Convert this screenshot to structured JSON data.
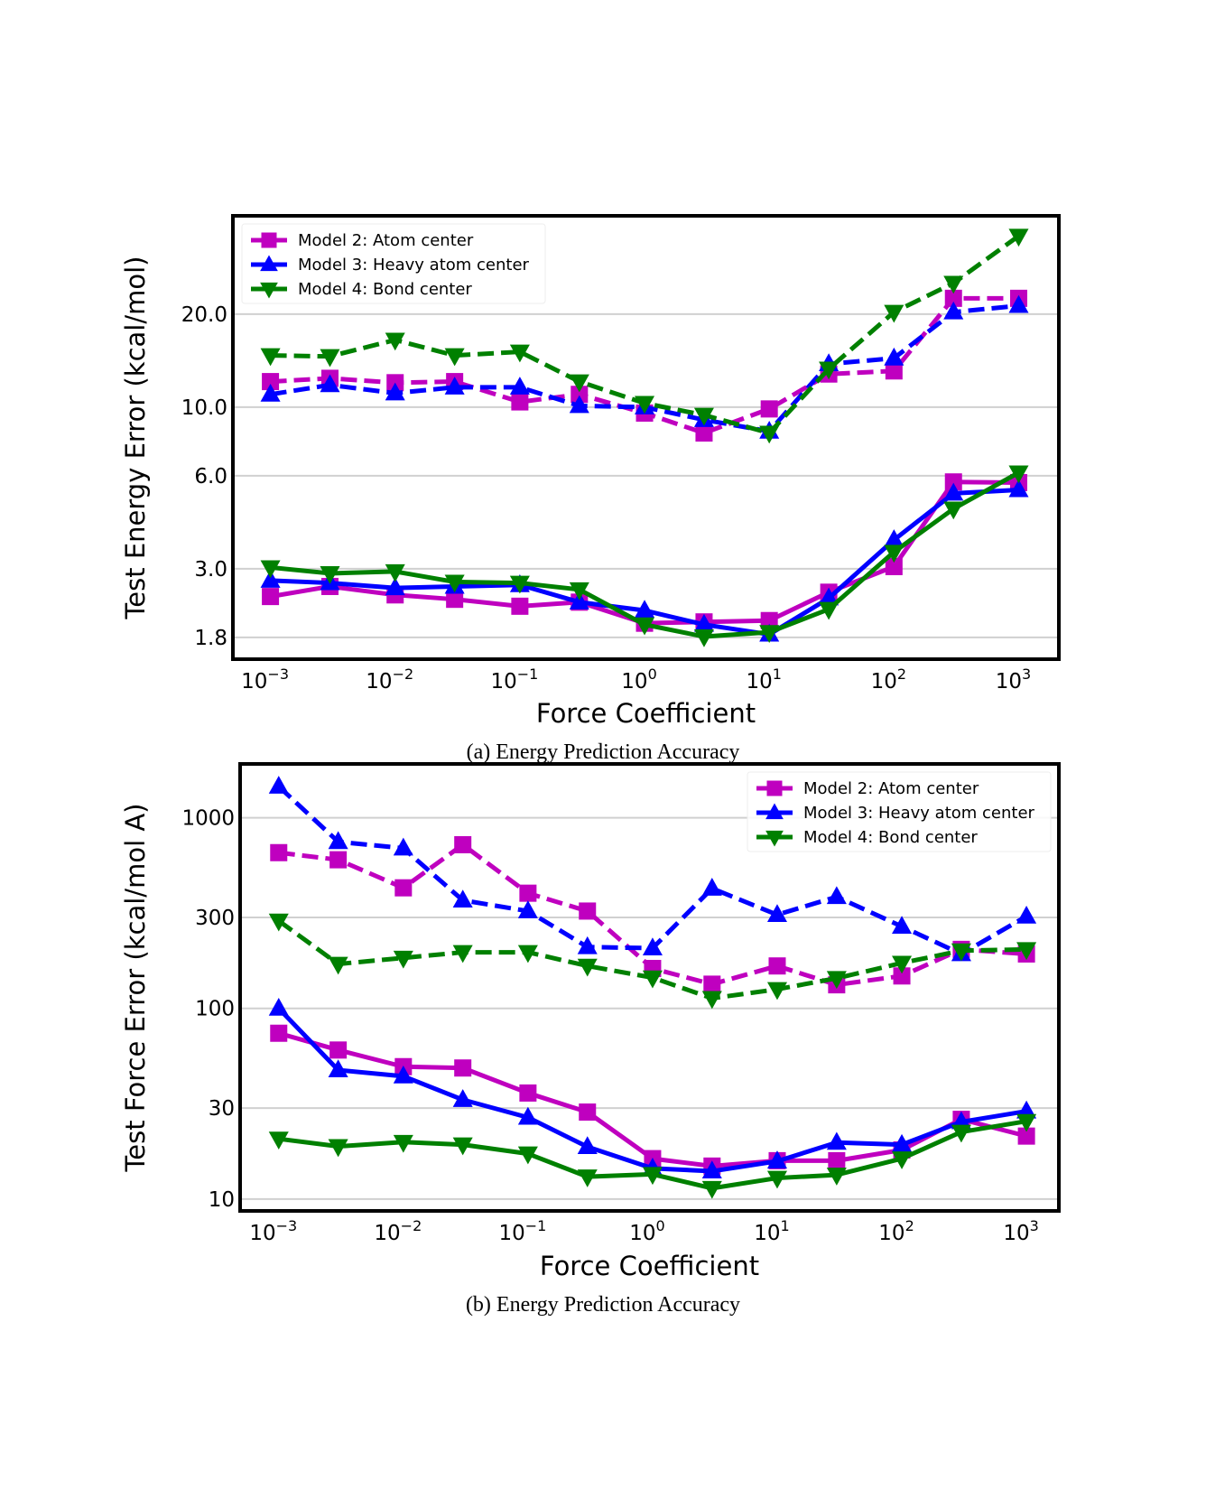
{
  "x_values": [
    0.001,
    0.003,
    0.01,
    0.03,
    0.1,
    0.3,
    1,
    3,
    10,
    30,
    100,
    300,
    1000
  ],
  "colors": {
    "Model 2": "#bf00bf",
    "Model 3": "#0000ff",
    "Model 4": "#008000"
  },
  "markers": {
    "Model 2": "square",
    "Model 3": "triangle-up",
    "Model 4": "triangle-down"
  },
  "chart_data": [
    {
      "type": "line",
      "caption": "(a) Energy Prediction Accuracy",
      "xlabel": "Force Coefficient",
      "ylabel": "Test Energy Error (kcal/mol)",
      "xscale": "log",
      "yscale": "log",
      "xlim": [
        0.0005,
        2100
      ],
      "ylim": [
        1.53,
        41.6
      ],
      "xticks": [
        {
          "exp": "-3",
          "value": 0.001
        },
        {
          "exp": "-2",
          "value": 0.01
        },
        {
          "exp": "-1",
          "value": 0.1
        },
        {
          "exp": "0",
          "value": 1
        },
        {
          "exp": "1",
          "value": 10
        },
        {
          "exp": "2",
          "value": 100
        },
        {
          "exp": "3",
          "value": 1000
        }
      ],
      "yticks": [
        {
          "label": "1.8",
          "value": 1.8
        },
        {
          "label": "3.0",
          "value": 3.0
        },
        {
          "label": "6.0",
          "value": 6.0
        },
        {
          "label": "10.0",
          "value": 10.0
        },
        {
          "label": "20.0",
          "value": 20.0
        }
      ],
      "grid": "horizontal",
      "legend_position": "top-left",
      "legend": [
        "Model 2: Atom center",
        "Model 3: Heavy atom center",
        "Model 4: Bond center"
      ],
      "series": [
        {
          "model": "Model 2",
          "linestyle": "dashed",
          "values": [
            12.1,
            12.4,
            12.0,
            12.1,
            10.4,
            11.0,
            9.57,
            8.25,
            9.87,
            12.8,
            13.1,
            22.5,
            22.5
          ]
        },
        {
          "model": "Model 3",
          "linestyle": "dashed",
          "values": [
            11.0,
            11.8,
            11.1,
            11.6,
            11.6,
            10.1,
            10.0,
            9.1,
            8.35,
            13.8,
            14.4,
            20.3,
            21.3
          ]
        },
        {
          "model": "Model 4",
          "linestyle": "dashed",
          "values": [
            14.7,
            14.6,
            16.5,
            14.7,
            15.1,
            12.1,
            10.3,
            9.43,
            8.25,
            13.3,
            20.3,
            25.2,
            35.8
          ]
        },
        {
          "model": "Model 2",
          "linestyle": "solid",
          "values": [
            2.44,
            2.63,
            2.47,
            2.39,
            2.27,
            2.34,
            2.0,
            2.02,
            2.04,
            2.52,
            3.05,
            5.73,
            5.7
          ]
        },
        {
          "model": "Model 3",
          "linestyle": "solid",
          "values": [
            2.75,
            2.7,
            2.6,
            2.63,
            2.66,
            2.34,
            2.2,
            1.98,
            1.84,
            2.41,
            3.72,
            5.26,
            5.4
          ]
        },
        {
          "model": "Model 4",
          "linestyle": "solid",
          "values": [
            3.03,
            2.9,
            2.94,
            2.72,
            2.7,
            2.57,
            1.98,
            1.81,
            1.87,
            2.22,
            3.4,
            4.69,
            6.14
          ]
        }
      ]
    },
    {
      "type": "line",
      "caption": "(b) Energy Prediction Accuracy",
      "xlabel": "Force Coefficient",
      "ylabel": "Test Force Error (kcal/mol A)",
      "xscale": "log",
      "yscale": "log",
      "xlim": [
        0.00049,
        1820
      ],
      "ylim": [
        8.67,
        1915
      ],
      "xticks": [
        {
          "exp": "-3",
          "value": 0.001
        },
        {
          "exp": "-2",
          "value": 0.01
        },
        {
          "exp": "-1",
          "value": 0.1
        },
        {
          "exp": "0",
          "value": 1
        },
        {
          "exp": "1",
          "value": 10
        },
        {
          "exp": "2",
          "value": 100
        },
        {
          "exp": "3",
          "value": 1000
        }
      ],
      "yticks": [
        {
          "label": "10",
          "value": 10
        },
        {
          "label": "30",
          "value": 30
        },
        {
          "label": "100",
          "value": 100
        },
        {
          "label": "300",
          "value": 300
        },
        {
          "label": "1000",
          "value": 1000
        }
      ],
      "grid": "horizontal",
      "legend_position": "top-right",
      "legend": [
        "Model 2: Atom center",
        "Model 3: Heavy atom center",
        "Model 4: Bond center"
      ],
      "series": [
        {
          "model": "Model 2",
          "linestyle": "dashed",
          "values": [
            656,
            602,
            429,
            722,
            402,
            324,
            162,
            134,
            167,
            133,
            148,
            204,
            193
          ]
        },
        {
          "model": "Model 3",
          "linestyle": "dashed",
          "values": [
            1459,
            748,
            692,
            369,
            324,
            210,
            207,
            426,
            310,
            385,
            269,
            193,
            304
          ]
        },
        {
          "model": "Model 4",
          "linestyle": "dashed",
          "values": [
            288,
            171,
            184,
            197,
            197,
            167,
            145,
            113,
            126,
            144,
            173,
            201,
            204
          ]
        },
        {
          "model": "Model 2",
          "linestyle": "solid",
          "values": [
            74.1,
            60.5,
            49.5,
            48.7,
            36.0,
            28.6,
            16.3,
            14.9,
            15.9,
            15.9,
            18.1,
            26.2,
            21.4
          ]
        },
        {
          "model": "Model 3",
          "linestyle": "solid",
          "values": [
            100,
            47.5,
            44.1,
            33.2,
            26.8,
            18.8,
            14.5,
            14.0,
            15.8,
            19.8,
            19.3,
            25.4,
            28.9
          ]
        },
        {
          "model": "Model 4",
          "linestyle": "solid",
          "values": [
            20.7,
            18.9,
            19.9,
            19.3,
            17.3,
            13.1,
            13.5,
            11.4,
            12.9,
            13.4,
            16.3,
            22.5,
            25.6
          ]
        }
      ]
    }
  ]
}
